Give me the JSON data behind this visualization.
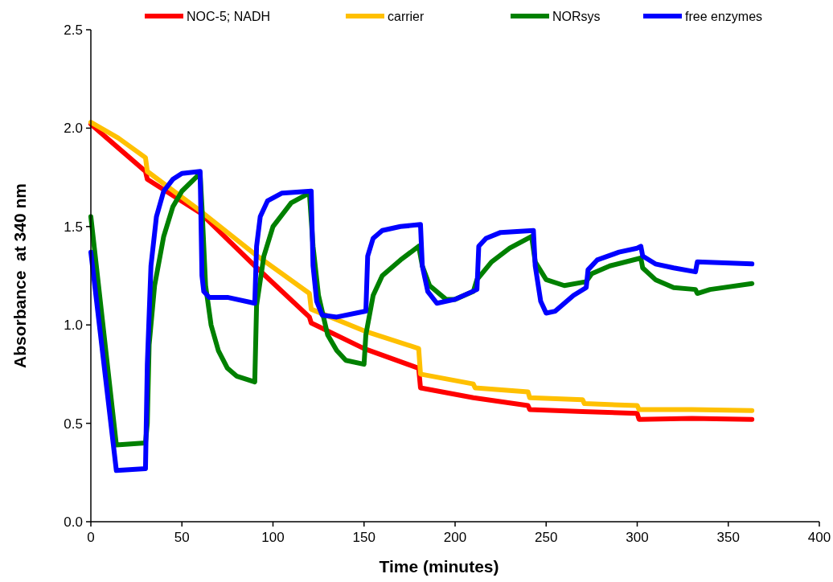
{
  "chart_data": {
    "type": "line",
    "xlabel": "Time (minutes)",
    "ylabel": "Absorbance  at 340 nm",
    "xlim": [
      0,
      400
    ],
    "xticks": [
      0,
      50,
      100,
      150,
      200,
      250,
      300,
      350,
      400
    ],
    "ylim": [
      0,
      2.5
    ],
    "yticks": [
      {
        "value": 0,
        "label": "0.0"
      },
      {
        "value": 0.5,
        "label": "0.5"
      },
      {
        "value": 1,
        "label": "1.0"
      },
      {
        "value": 1.5,
        "label": "1.5"
      },
      {
        "value": 2,
        "label": "2.0"
      },
      {
        "value": 2.5,
        "label": "2.5"
      }
    ],
    "grid": false,
    "legend": "top",
    "marker": "none",
    "line_style": "solid",
    "series": [
      {
        "name": "NOC-5; NADH",
        "color": "#ff0000",
        "x": [
          0,
          15,
          30,
          31,
          60,
          90,
          120,
          121,
          150,
          180,
          181,
          210,
          240,
          241,
          270,
          300,
          301,
          330,
          363
        ],
        "values": [
          2.02,
          1.9,
          1.78,
          1.74,
          1.57,
          1.3,
          1.04,
          1.01,
          0.88,
          0.78,
          0.68,
          0.63,
          0.59,
          0.57,
          0.56,
          0.55,
          0.52,
          0.525,
          0.52
        ]
      },
      {
        "name": "carrier",
        "color": "#ffc000",
        "x": [
          0,
          15,
          30,
          31,
          60,
          90,
          120,
          121,
          150,
          180,
          181,
          210,
          211,
          240,
          241,
          270,
          271,
          300,
          301,
          330,
          363
        ],
        "values": [
          2.03,
          1.95,
          1.85,
          1.78,
          1.58,
          1.36,
          1.16,
          1.08,
          0.97,
          0.88,
          0.75,
          0.7,
          0.68,
          0.66,
          0.63,
          0.62,
          0.6,
          0.59,
          0.57,
          0.57,
          0.565
        ]
      },
      {
        "name": "NORsys",
        "color": "#008000",
        "x": [
          0,
          14,
          30,
          31,
          32,
          35,
          40,
          45,
          50,
          60,
          61,
          63,
          66,
          70,
          75,
          80,
          90,
          91,
          95,
          100,
          110,
          120,
          122,
          125,
          130,
          135,
          140,
          150,
          151,
          155,
          160,
          170,
          180,
          182,
          186,
          195,
          200,
          210,
          212,
          220,
          230,
          242,
          244,
          250,
          260,
          272,
          275,
          285,
          302,
          303,
          310,
          320,
          332,
          333,
          340,
          363
        ],
        "values": [
          1.55,
          0.39,
          0.4,
          0.5,
          0.9,
          1.2,
          1.45,
          1.6,
          1.68,
          1.77,
          1.6,
          1.2,
          1.0,
          0.87,
          0.78,
          0.74,
          0.71,
          1.1,
          1.35,
          1.5,
          1.62,
          1.67,
          1.4,
          1.15,
          0.95,
          0.87,
          0.82,
          0.8,
          0.95,
          1.15,
          1.25,
          1.33,
          1.4,
          1.3,
          1.2,
          1.13,
          1.13,
          1.17,
          1.23,
          1.32,
          1.39,
          1.45,
          1.32,
          1.23,
          1.2,
          1.22,
          1.26,
          1.3,
          1.34,
          1.29,
          1.23,
          1.19,
          1.18,
          1.16,
          1.18,
          1.21
        ]
      },
      {
        "name": "free enzymes",
        "color": "#0000ff",
        "x": [
          0,
          14,
          30,
          31,
          33,
          36,
          40,
          45,
          50,
          60,
          61,
          62,
          65,
          75,
          90,
          91,
          93,
          97,
          105,
          121,
          122,
          124,
          127,
          135,
          151,
          152,
          155,
          160,
          170,
          181,
          182,
          185,
          190,
          200,
          212,
          213,
          217,
          225,
          243,
          244,
          247,
          250,
          255,
          265,
          272,
          273,
          278,
          290,
          300,
          302,
          303,
          310,
          320,
          332,
          333,
          363
        ],
        "values": [
          1.37,
          0.26,
          0.27,
          0.8,
          1.3,
          1.55,
          1.68,
          1.74,
          1.77,
          1.78,
          1.25,
          1.17,
          1.14,
          1.14,
          1.11,
          1.4,
          1.55,
          1.63,
          1.67,
          1.68,
          1.3,
          1.12,
          1.05,
          1.04,
          1.07,
          1.35,
          1.44,
          1.48,
          1.5,
          1.51,
          1.3,
          1.17,
          1.11,
          1.13,
          1.18,
          1.4,
          1.44,
          1.47,
          1.48,
          1.3,
          1.12,
          1.06,
          1.07,
          1.15,
          1.19,
          1.28,
          1.33,
          1.37,
          1.39,
          1.4,
          1.35,
          1.31,
          1.29,
          1.27,
          1.32,
          1.31
        ]
      }
    ]
  }
}
